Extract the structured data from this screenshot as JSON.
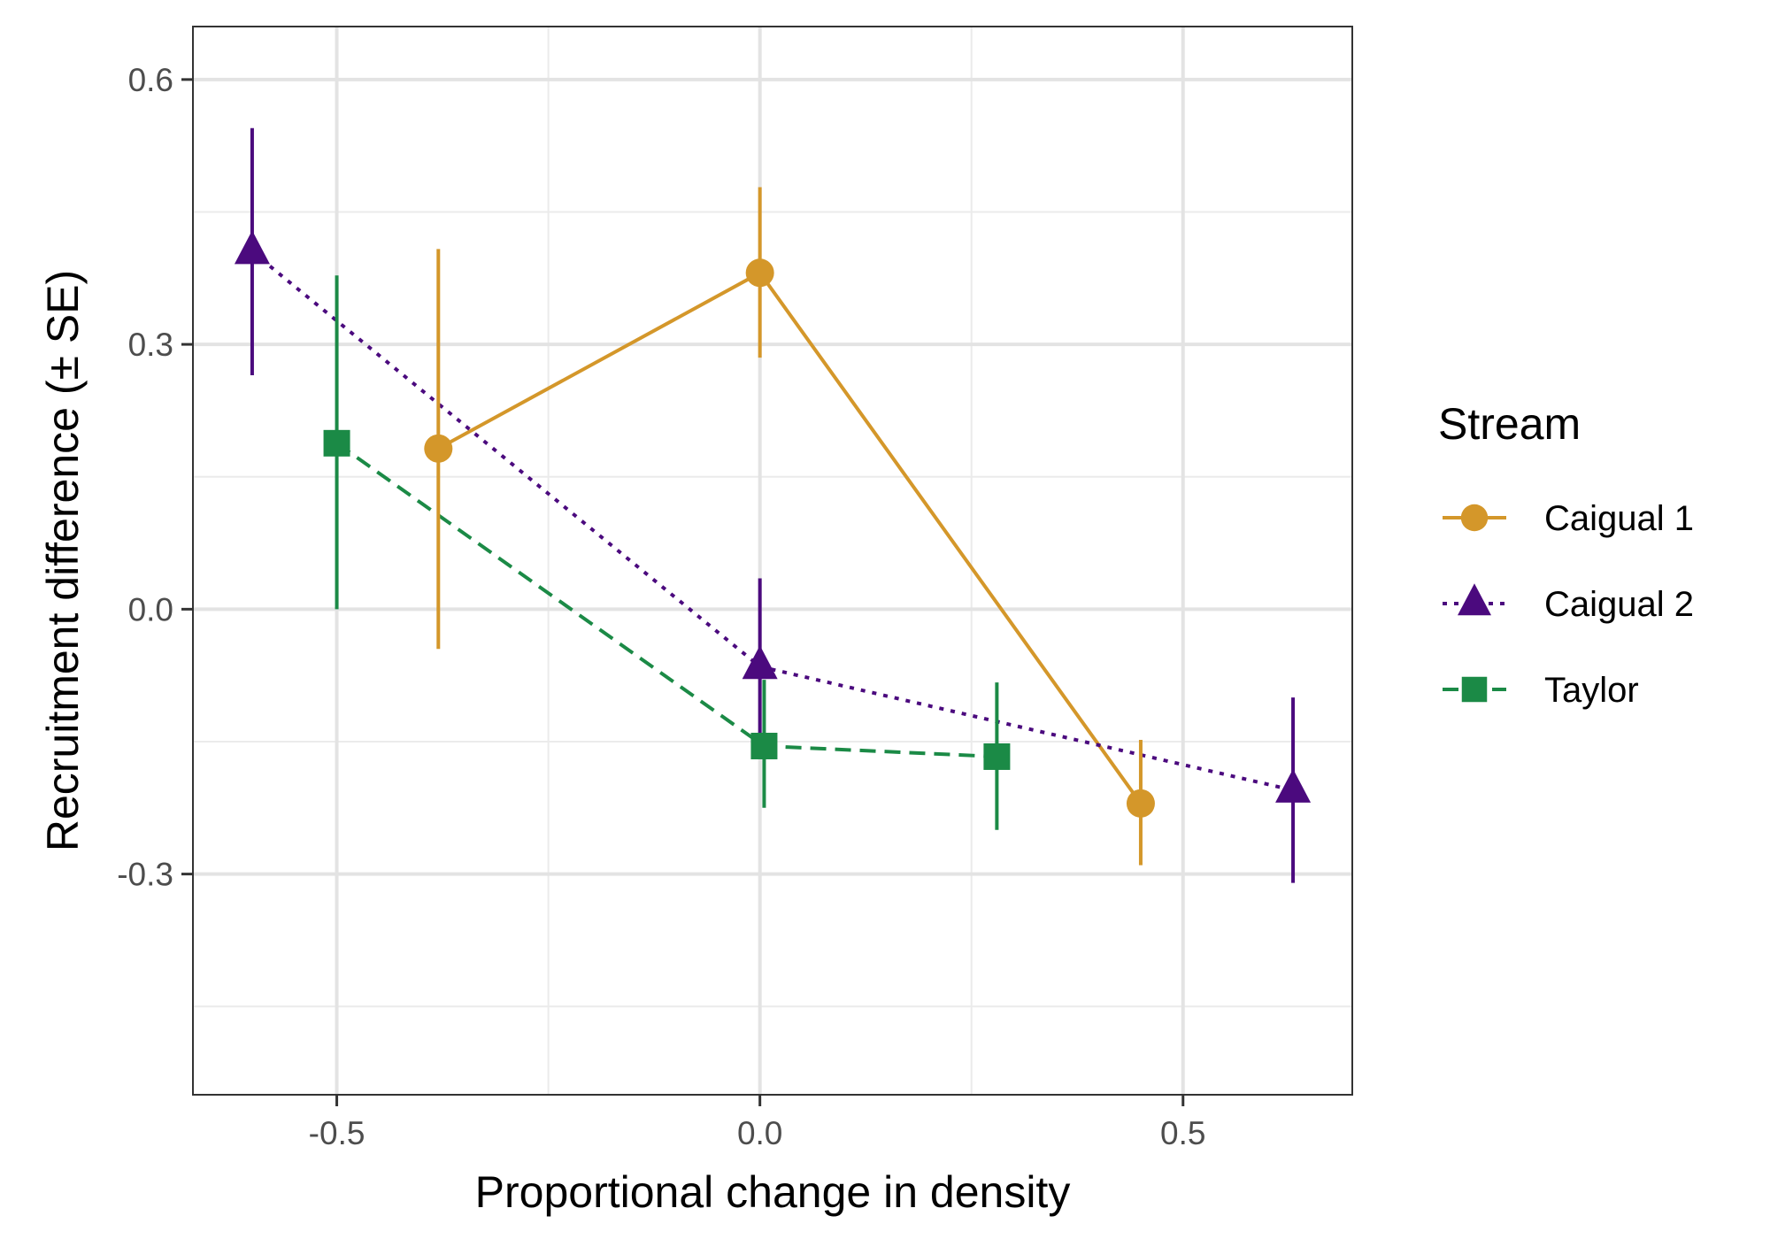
{
  "chart_data": {
    "type": "scatter",
    "title": "",
    "xlabel": "Proportional change in density",
    "ylabel": "Recruitment difference (± SE)",
    "xlim": [
      -0.67,
      0.7
    ],
    "ylim": [
      -0.55,
      0.66
    ],
    "x_ticks": [
      -0.5,
      0.0,
      0.5
    ],
    "x_tick_labels": [
      "-0.5",
      "0.0",
      "0.5"
    ],
    "y_ticks": [
      -0.3,
      0.0,
      0.3,
      0.6
    ],
    "y_tick_labels": [
      "-0.3",
      "0.0",
      "0.3",
      "0.6"
    ],
    "grid": true,
    "legend_title": "Stream",
    "legend_position": "right",
    "series": [
      {
        "name": "Caigual 1",
        "color": "#D4972A",
        "marker": "circle",
        "line_style": "solid",
        "points": [
          {
            "x": -0.38,
            "y": 0.182,
            "lo": -0.045,
            "hi": 0.408
          },
          {
            "x": 0.0,
            "y": 0.381,
            "lo": 0.285,
            "hi": 0.478
          },
          {
            "x": 0.45,
            "y": -0.22,
            "lo": -0.29,
            "hi": -0.148
          }
        ]
      },
      {
        "name": "Caigual 2",
        "color": "#4B0A7E",
        "marker": "triangle",
        "line_style": "dotted",
        "points": [
          {
            "x": -0.6,
            "y": 0.405,
            "lo": 0.265,
            "hi": 0.545
          },
          {
            "x": 0.0,
            "y": -0.065,
            "lo": -0.165,
            "hi": 0.035
          },
          {
            "x": 0.63,
            "y": -0.205,
            "lo": -0.31,
            "hi": -0.1
          }
        ]
      },
      {
        "name": "Taylor",
        "color": "#1B8A46",
        "marker": "square",
        "line_style": "dashed",
        "points": [
          {
            "x": -0.5,
            "y": 0.188,
            "lo": 0.0,
            "hi": 0.378
          },
          {
            "x": 0.005,
            "y": -0.155,
            "lo": -0.225,
            "hi": -0.08
          },
          {
            "x": 0.28,
            "y": -0.167,
            "lo": -0.25,
            "hi": -0.083
          }
        ]
      }
    ]
  }
}
